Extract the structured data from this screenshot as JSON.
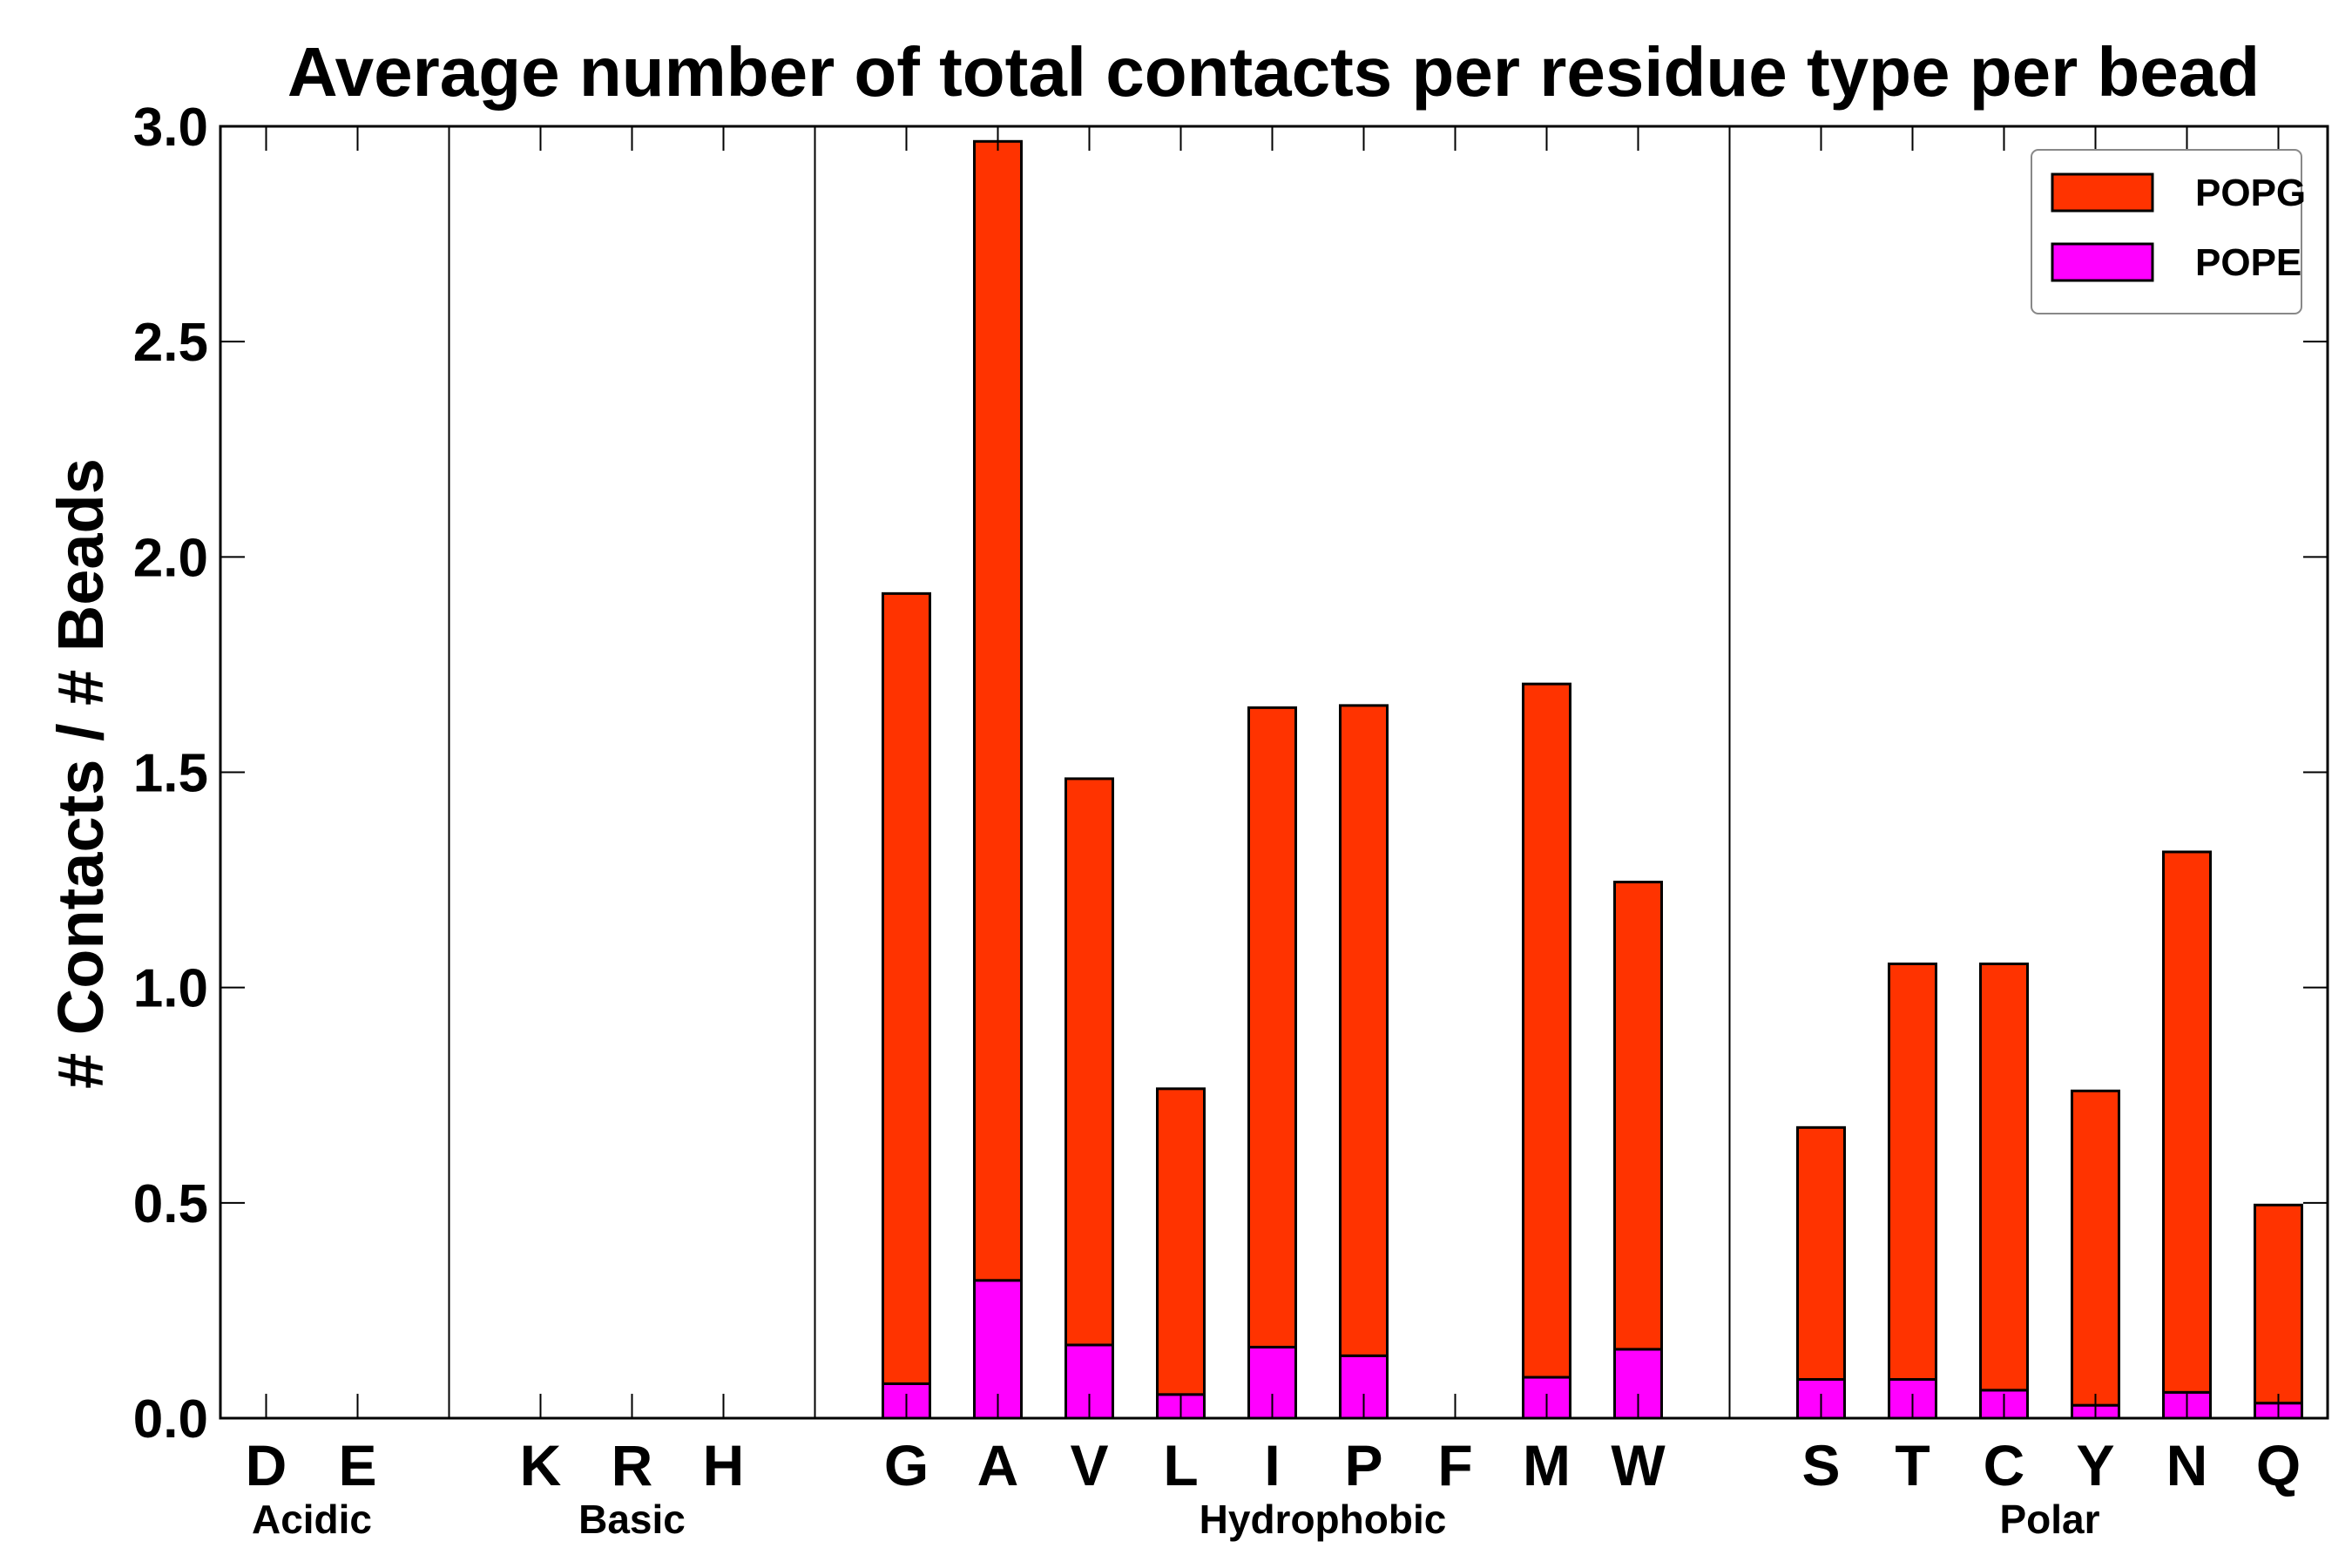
{
  "chart_data": {
    "type": "bar",
    "stacked": true,
    "title": "Average number of total contacts per residue type per bead",
    "xlabel": "",
    "ylabel": "# Contacts / # Beads",
    "ylim": [
      0,
      3.0
    ],
    "yticks": [
      "0.0",
      "0.5",
      "1.0",
      "1.5",
      "2.0",
      "2.5",
      "3.0"
    ],
    "categories": [
      "D",
      "E",
      "K",
      "R",
      "H",
      "G",
      "A",
      "V",
      "L",
      "I",
      "P",
      "F",
      "M",
      "W",
      "S",
      "T",
      "C",
      "Y",
      "N",
      "Q"
    ],
    "groups": [
      {
        "name": "Acidic",
        "members": [
          "D",
          "E"
        ]
      },
      {
        "name": "Basic",
        "members": [
          "K",
          "R",
          "H"
        ]
      },
      {
        "name": "Hydrophobic",
        "members": [
          "G",
          "A",
          "V",
          "L",
          "I",
          "P",
          "F",
          "M",
          "W"
        ]
      },
      {
        "name": "Polar",
        "members": [
          "S",
          "T",
          "C",
          "Y",
          "N",
          "Q"
        ]
      }
    ],
    "series": [
      {
        "name": "POPE",
        "color": "#ff00ff",
        "values": [
          0,
          0,
          0,
          0,
          0,
          0.08,
          0.32,
          0.17,
          0.055,
          0.165,
          0.145,
          0,
          0.095,
          0.16,
          0.09,
          0.09,
          0.065,
          0.03,
          0.06,
          0.035
        ]
      },
      {
        "name": "POPG",
        "color": "#ff3300",
        "values": [
          0,
          0,
          0,
          0,
          0,
          1.835,
          2.645,
          1.315,
          0.71,
          1.485,
          1.51,
          0,
          1.61,
          1.085,
          0.585,
          0.965,
          0.99,
          0.73,
          1.255,
          0.46
        ]
      }
    ],
    "legend": {
      "position": "top-right",
      "entries": [
        "POPG",
        "POPE"
      ]
    },
    "grid": false
  }
}
